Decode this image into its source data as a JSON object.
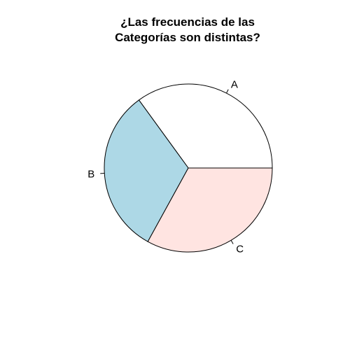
{
  "chart_data": {
    "type": "pie",
    "title": [
      "¿Las frecuencias de las",
      "Categorías son distintas?"
    ],
    "categories": [
      "A",
      "B",
      "C"
    ],
    "values": [
      0.35,
      0.32,
      0.33
    ],
    "colors": [
      "#ffffff",
      "#add8e6",
      "#ffe4e1"
    ],
    "border_color": "#000000",
    "direction": "counterclockwise",
    "start_angle_deg": 0
  }
}
